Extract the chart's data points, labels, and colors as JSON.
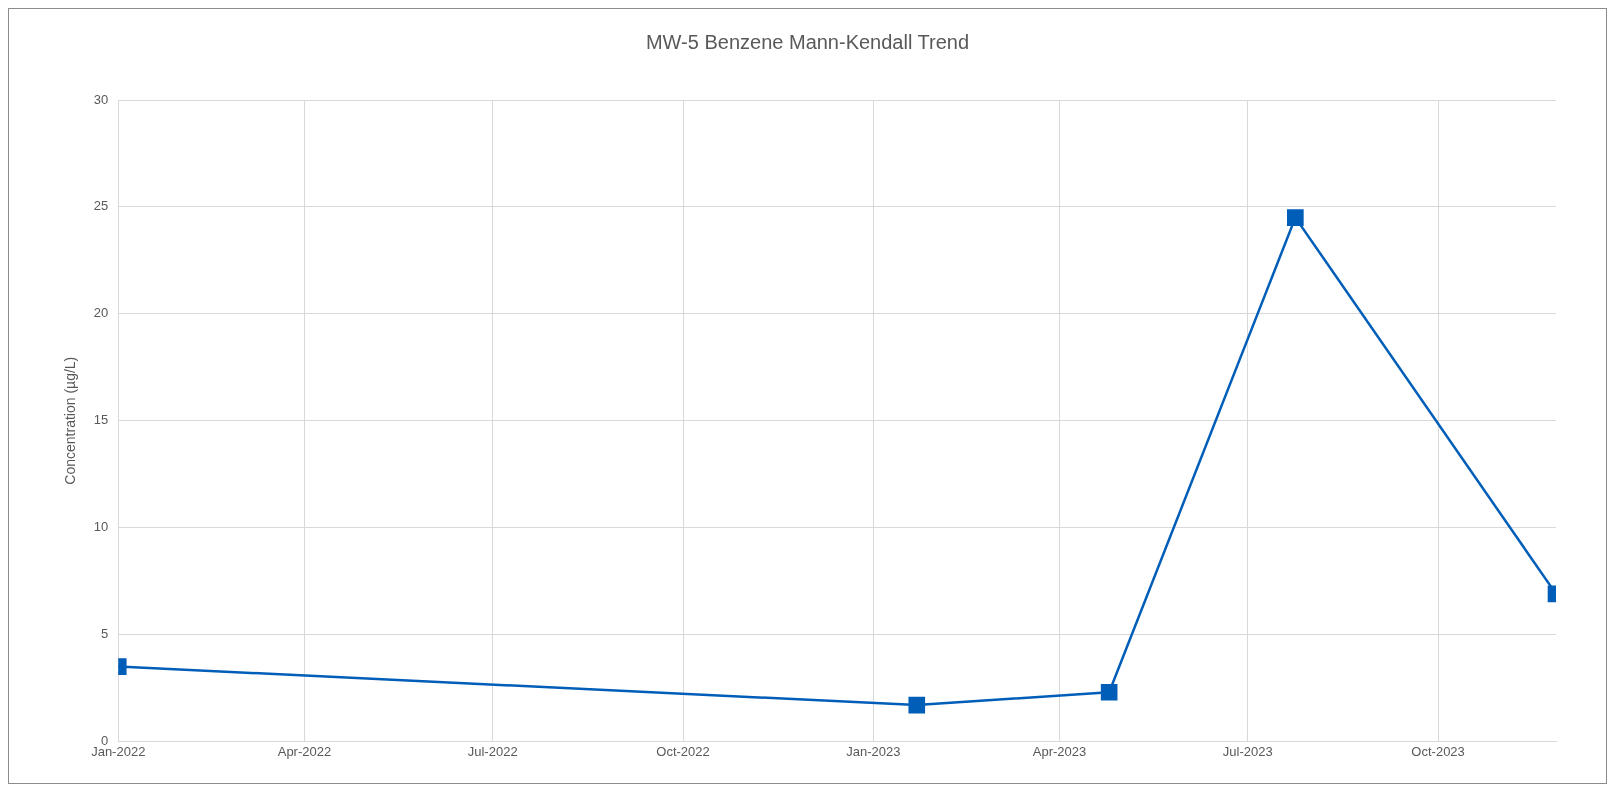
{
  "chart_data": {
    "type": "line",
    "title": "MW-5 Benzene Mann-Kendall Trend",
    "ylabel": "Concentration (µg/L)",
    "x": [
      "2022-01-01",
      "2023-01-22",
      "2023-04-25",
      "2023-07-24",
      "2023-11-27"
    ],
    "series": [
      {
        "color": "#005eb8",
        "values": [
          3.5,
          1.7,
          2.3,
          24.5,
          6.9
        ]
      }
    ],
    "xlim": [
      "2022-01-01",
      "2023-11-27"
    ],
    "xticks": [
      {
        "value": "2022-01-01",
        "label": "Jan-2022"
      },
      {
        "value": "2022-04-01",
        "label": "Apr-2022"
      },
      {
        "value": "2022-07-01",
        "label": "Jul-2022"
      },
      {
        "value": "2022-10-01",
        "label": "Oct-2022"
      },
      {
        "value": "2023-01-01",
        "label": "Jan-2023"
      },
      {
        "value": "2023-04-01",
        "label": "Apr-2023"
      },
      {
        "value": "2023-07-01",
        "label": "Jul-2023"
      },
      {
        "value": "2023-10-01",
        "label": "Oct-2023"
      }
    ],
    "ylim": [
      0,
      30
    ],
    "yticks": [
      0,
      5,
      10,
      15,
      20,
      25,
      30
    ],
    "grid": true,
    "legend": false,
    "marker": "square",
    "line_style": "solid"
  }
}
